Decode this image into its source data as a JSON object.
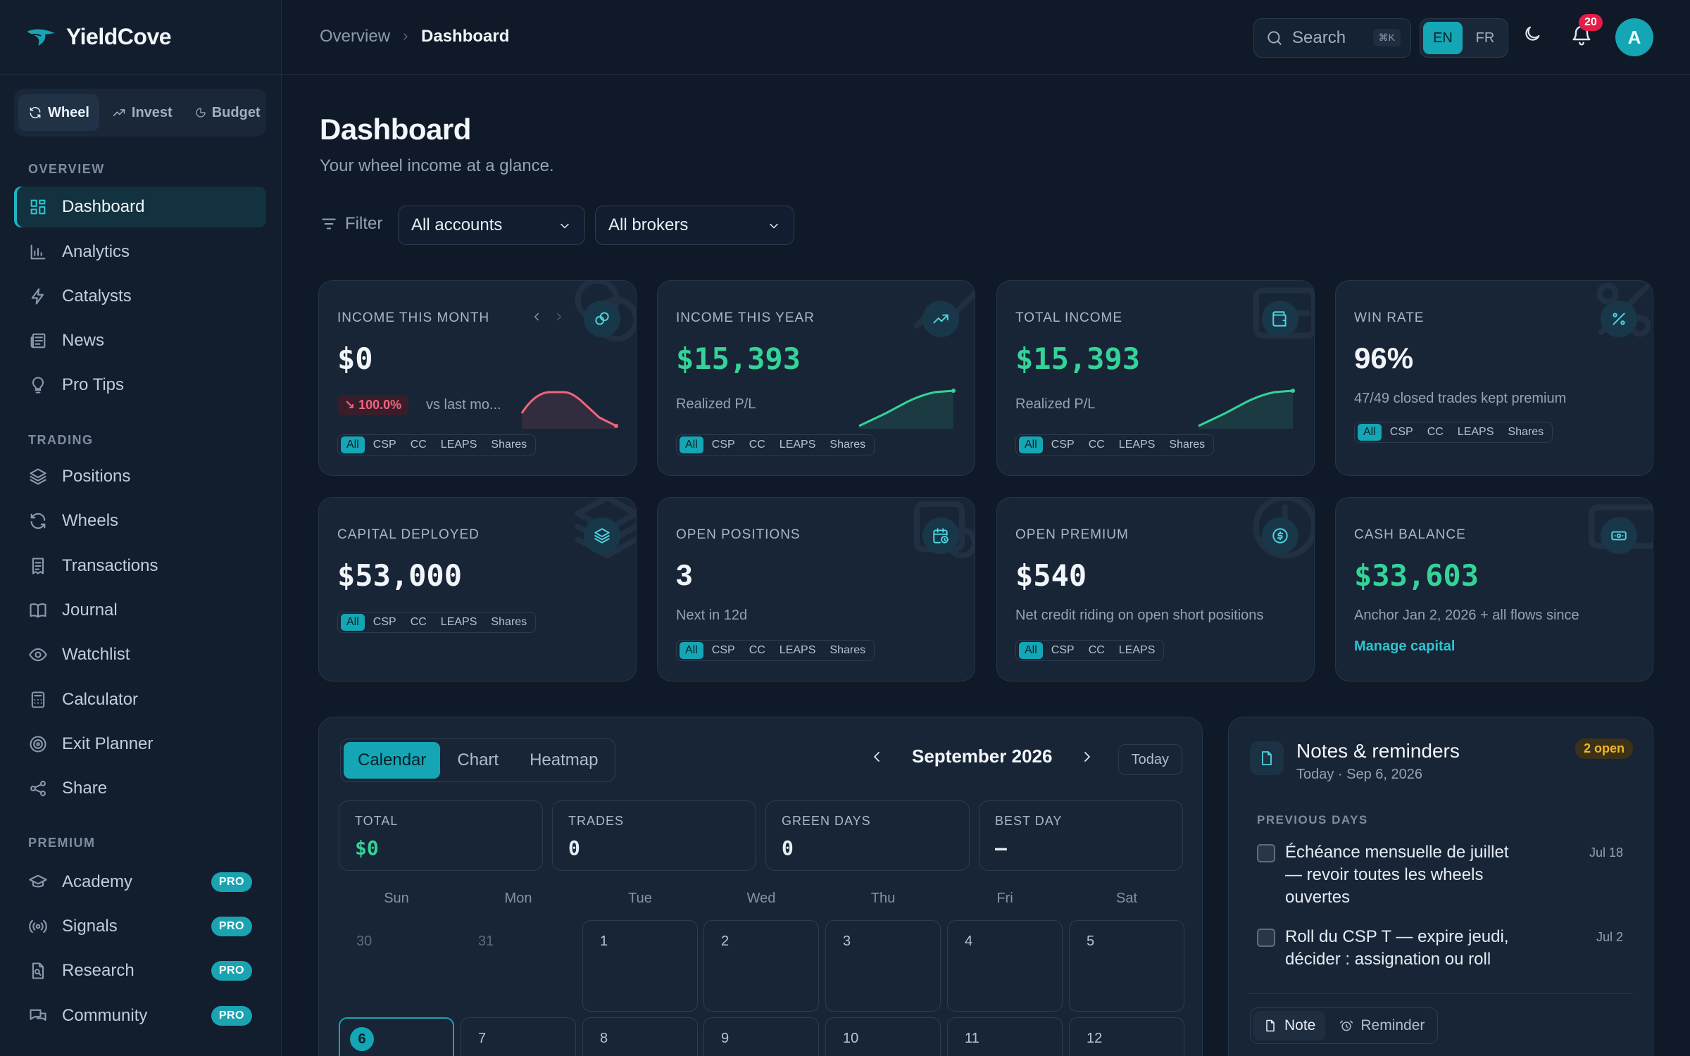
{
  "brand": {
    "name": "YieldCove"
  },
  "modes": [
    {
      "label": "Wheel",
      "icon": "refresh-icon"
    },
    {
      "label": "Invest",
      "icon": "trending-up-icon"
    },
    {
      "label": "Budget",
      "icon": "pie-icon"
    }
  ],
  "sidebar": {
    "overview_title": "OVERVIEW",
    "overview": [
      {
        "label": "Dashboard",
        "icon": "dashboard-icon",
        "active": true
      },
      {
        "label": "Analytics",
        "icon": "bar-chart-icon"
      },
      {
        "label": "Catalysts",
        "icon": "bolt-icon"
      },
      {
        "label": "News",
        "icon": "newspaper-icon"
      },
      {
        "label": "Pro Tips",
        "icon": "lightbulb-icon"
      }
    ],
    "trading_title": "TRADING",
    "trading": [
      {
        "label": "Positions",
        "icon": "layers-icon"
      },
      {
        "label": "Wheels",
        "icon": "refresh-icon"
      },
      {
        "label": "Transactions",
        "icon": "receipt-icon"
      },
      {
        "label": "Journal",
        "icon": "book-icon"
      },
      {
        "label": "Watchlist",
        "icon": "eye-icon"
      },
      {
        "label": "Calculator",
        "icon": "calculator-icon"
      },
      {
        "label": "Exit Planner",
        "icon": "target-icon"
      },
      {
        "label": "Share",
        "icon": "share-icon"
      }
    ],
    "premium_title": "PREMIUM",
    "premium": [
      {
        "label": "Academy",
        "icon": "graduation-cap-icon",
        "badge": "PRO"
      },
      {
        "label": "Signals",
        "icon": "radio-icon",
        "badge": "PRO"
      },
      {
        "label": "Research",
        "icon": "file-search-icon",
        "badge": "PRO"
      },
      {
        "label": "Community",
        "icon": "chat-icon",
        "badge": "PRO"
      }
    ]
  },
  "topbar": {
    "breadcrumb": [
      "Overview",
      "Dashboard"
    ],
    "search_label": "Search",
    "search_shortcut": "⌘K",
    "languages": [
      "EN",
      "FR"
    ],
    "active_language": "EN",
    "notification_count": "20",
    "avatar_initial": "A"
  },
  "header": {
    "title": "Dashboard",
    "subtitle": "Your wheel income at a glance.",
    "filter_label": "Filter",
    "account_select": "All accounts",
    "broker_select": "All brokers"
  },
  "cards": [
    {
      "label": "INCOME THIS MONTH",
      "value": "$0",
      "delta": "100.0%",
      "delta_text": "vs last mo...",
      "chips": [
        "All",
        "CSP",
        "CC",
        "LEAPS",
        "Shares"
      ],
      "icon": "coins-icon",
      "trend": "down"
    },
    {
      "label": "INCOME THIS YEAR",
      "value": "$15,393",
      "sub": "Realized P/L",
      "chips": [
        "All",
        "CSP",
        "CC",
        "LEAPS",
        "Shares"
      ],
      "icon": "trending-up-icon",
      "trend": "up"
    },
    {
      "label": "TOTAL INCOME",
      "value": "$15,393",
      "sub": "Realized P/L",
      "chips": [
        "All",
        "CSP",
        "CC",
        "LEAPS",
        "Shares"
      ],
      "icon": "wallet-icon",
      "trend": "up"
    },
    {
      "label": "WIN RATE",
      "value": "96%",
      "sub": "47/49 closed trades kept premium",
      "chips": [
        "All",
        "CSP",
        "CC",
        "LEAPS",
        "Shares"
      ],
      "icon": "percent-icon"
    },
    {
      "label": "CAPITAL DEPLOYED",
      "value": "$53,000",
      "chips": [
        "All",
        "CSP",
        "CC",
        "LEAPS",
        "Shares"
      ],
      "icon": "layers-icon"
    },
    {
      "label": "OPEN POSITIONS",
      "value": "3",
      "sub": "Next in 12d",
      "chips": [
        "All",
        "CSP",
        "CC",
        "LEAPS",
        "Shares"
      ],
      "icon": "calendar-clock-icon"
    },
    {
      "label": "OPEN PREMIUM",
      "value": "$540",
      "sub": "Net credit riding on open short positions",
      "chips": [
        "All",
        "CSP",
        "CC",
        "LEAPS"
      ],
      "icon": "dollar-circle-icon"
    },
    {
      "label": "CASH BALANCE",
      "value": "$33,603",
      "sub": "Anchor Jan 2, 2026 + all flows since",
      "link": "Manage capital",
      "icon": "banknote-icon"
    }
  ],
  "calendar": {
    "tabs": [
      "Calendar",
      "Chart",
      "Heatmap"
    ],
    "active_tab": "Calendar",
    "month": "September 2026",
    "today_label": "Today",
    "stats": [
      {
        "label": "TOTAL",
        "value": "$0"
      },
      {
        "label": "TRADES",
        "value": "0"
      },
      {
        "label": "GREEN DAYS",
        "value": "0"
      },
      {
        "label": "BEST DAY",
        "value": "—"
      }
    ],
    "weekdays": [
      "Sun",
      "Mon",
      "Tue",
      "Wed",
      "Thu",
      "Fri",
      "Sat"
    ],
    "weeks": [
      [
        "30",
        "31",
        "1",
        "2",
        "3",
        "4",
        "5"
      ],
      [
        "6",
        "7",
        "8",
        "9",
        "10",
        "11",
        "12"
      ]
    ],
    "selected_day": "6"
  },
  "notes": {
    "title": "Notes & reminders",
    "date": "Today · Sep 6, 2026",
    "open_badge": "2 open",
    "section": "PREVIOUS DAYS",
    "items": [
      {
        "text": "Échéance mensuelle de juillet — revoir toutes les wheels ouvertes",
        "when": "Jul 18"
      },
      {
        "text": "Roll du CSP T — expire jeudi, décider : assignation ou roll",
        "when": "Jul 2"
      }
    ],
    "tabs": [
      "Note",
      "Reminder"
    ]
  },
  "colors": {
    "accent": "#14a6b4",
    "positive": "#34d399",
    "negative": "#f0657c",
    "background": "#0f1928"
  }
}
